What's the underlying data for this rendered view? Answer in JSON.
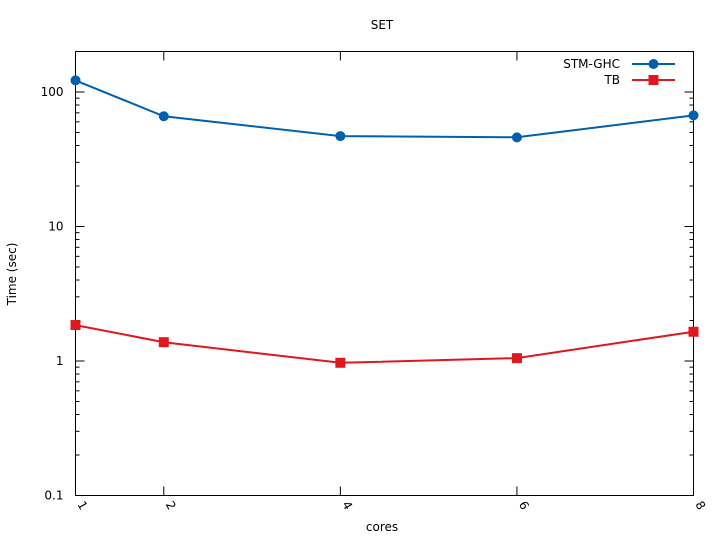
{
  "chart_data": {
    "type": "line",
    "title": "SET",
    "xlabel": "cores",
    "ylabel": "Time (sec)",
    "x": [
      1,
      2,
      4,
      6,
      8
    ],
    "x_ticks": [
      "1",
      "2",
      "4",
      "6",
      "8"
    ],
    "xlim": [
      1,
      8
    ],
    "ylim": [
      0.1,
      200
    ],
    "yscale": "log",
    "y_ticks": [
      {
        "value": 0.1,
        "label": "0.1"
      },
      {
        "value": 1,
        "label": "1"
      },
      {
        "value": 10,
        "label": "10"
      },
      {
        "value": 100,
        "label": "100"
      }
    ],
    "grid": false,
    "legend": "top-right",
    "series": [
      {
        "name": "STM-GHC",
        "marker": "circle",
        "color": "#0060ad",
        "values": [
          122,
          66,
          47,
          46,
          67
        ]
      },
      {
        "name": "TB",
        "marker": "square",
        "color": "#dd181f",
        "values": [
          1.85,
          1.38,
          0.97,
          1.05,
          1.65
        ]
      }
    ]
  }
}
